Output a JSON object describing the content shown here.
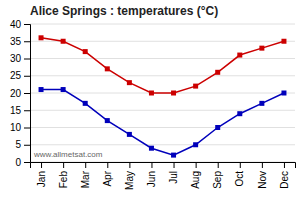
{
  "chart_data": {
    "type": "line",
    "title": "Alice Springs : temperatures (°C)",
    "categories": [
      "Jan",
      "Feb",
      "Mar",
      "Apr",
      "May",
      "Jun",
      "Jul",
      "Aug",
      "Sep",
      "Oct",
      "Nov",
      "Dec"
    ],
    "series": [
      {
        "color": "#cc0000",
        "marker": "square",
        "values": [
          36,
          35,
          32,
          27,
          23,
          20,
          20,
          22,
          26,
          31,
          33,
          35
        ]
      },
      {
        "color": "#0000bb",
        "marker": "square",
        "values": [
          21,
          21,
          17,
          12,
          8,
          4,
          2,
          5,
          10,
          14,
          17,
          20
        ]
      }
    ],
    "ylim": [
      0,
      40
    ],
    "yticks": [
      0,
      5,
      10,
      15,
      20,
      25,
      30,
      35,
      40
    ],
    "grid": true,
    "annotations": [
      "www.allmetsat.com"
    ]
  }
}
